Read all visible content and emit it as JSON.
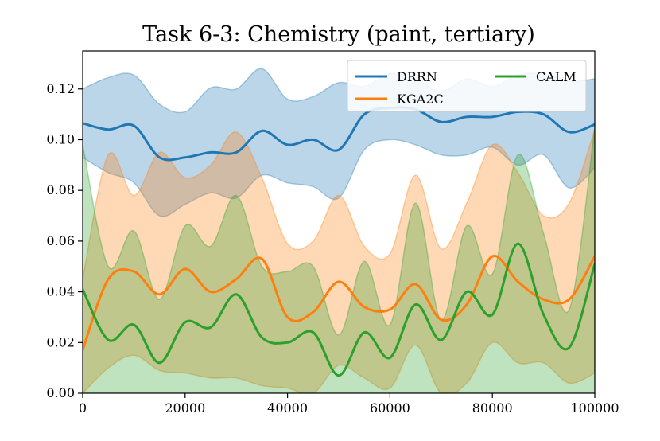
{
  "chart_data": {
    "type": "line",
    "title": "Task 6-3: Chemistry (paint, tertiary)",
    "xlabel": "",
    "ylabel": "",
    "xlim": [
      0,
      100000
    ],
    "ylim": [
      0,
      0.135
    ],
    "x_ticks": [
      0,
      20000,
      40000,
      60000,
      80000,
      100000
    ],
    "x_tick_labels": [
      "0",
      "20000",
      "40000",
      "60000",
      "80000",
      "100000"
    ],
    "y_ticks": [
      0,
      0.02,
      0.04,
      0.06,
      0.08,
      0.1,
      0.12
    ],
    "y_tick_labels": [
      "0.00",
      "0.02",
      "0.04",
      "0.06",
      "0.08",
      "0.10",
      "0.12"
    ],
    "grid": false,
    "legend_position": "top-right",
    "x": [
      0,
      5000,
      10000,
      15000,
      20000,
      25000,
      30000,
      35000,
      40000,
      45000,
      50000,
      55000,
      60000,
      65000,
      70000,
      75000,
      80000,
      85000,
      90000,
      95000,
      100000
    ],
    "series": [
      {
        "name": "DRRN",
        "color": "#1f77b4",
        "values": [
          0.1065,
          0.104,
          0.1055,
          0.093,
          0.093,
          0.095,
          0.095,
          0.1035,
          0.098,
          0.1,
          0.096,
          0.11,
          0.1125,
          0.112,
          0.107,
          0.109,
          0.109,
          0.111,
          0.11,
          0.103,
          0.106
        ],
        "upper": [
          0.12,
          0.1245,
          0.1255,
          0.114,
          0.111,
          0.1205,
          0.12,
          0.128,
          0.116,
          0.117,
          0.1225,
          0.121,
          0.126,
          0.124,
          0.119,
          0.124,
          0.121,
          0.1255,
          0.126,
          0.123,
          0.124
        ],
        "lower": [
          0.093,
          0.087,
          0.083,
          0.07,
          0.0745,
          0.079,
          0.077,
          0.086,
          0.083,
          0.0815,
          0.077,
          0.096,
          0.1,
          0.098,
          0.094,
          0.094,
          0.097,
          0.09,
          0.094,
          0.081,
          0.089
        ]
      },
      {
        "name": "KGA2C",
        "color": "#ff7f0e",
        "values": [
          0.017,
          0.045,
          0.048,
          0.039,
          0.049,
          0.04,
          0.045,
          0.053,
          0.03,
          0.032,
          0.044,
          0.034,
          0.033,
          0.043,
          0.029,
          0.035,
          0.054,
          0.044,
          0.037,
          0.037,
          0.054
        ],
        "upper": [
          0.045,
          0.094,
          0.078,
          0.095,
          0.085,
          0.09,
          0.103,
          0.085,
          0.059,
          0.06,
          0.078,
          0.058,
          0.055,
          0.086,
          0.057,
          0.075,
          0.098,
          0.087,
          0.07,
          0.075,
          0.104
        ],
        "lower": [
          0.0,
          0.01,
          0.015,
          0.009,
          0.008,
          0.006,
          0.006,
          0.003,
          0.002,
          0.0,
          0.011,
          0.006,
          0.002,
          0.019,
          0.0,
          0.004,
          0.02,
          0.012,
          0.012,
          0.004,
          0.008
        ]
      },
      {
        "name": "CALM",
        "color": "#2ca02c",
        "values": [
          0.041,
          0.021,
          0.027,
          0.012,
          0.028,
          0.026,
          0.039,
          0.022,
          0.02,
          0.024,
          0.007,
          0.024,
          0.014,
          0.035,
          0.021,
          0.04,
          0.031,
          0.059,
          0.031,
          0.018,
          0.051
        ],
        "upper": [
          0.098,
          0.05,
          0.064,
          0.037,
          0.066,
          0.058,
          0.078,
          0.05,
          0.048,
          0.05,
          0.023,
          0.052,
          0.027,
          0.075,
          0.029,
          0.066,
          0.047,
          0.094,
          0.063,
          0.033,
          0.105
        ],
        "lower": [
          0.0,
          0.0,
          0.0,
          0.0,
          0.0,
          0.0,
          0.0,
          0.0,
          0.0,
          0.0,
          0.0,
          0.0,
          0.0,
          0.0,
          0.0,
          0.0,
          0.0,
          0.0,
          0.0,
          0.0,
          0.0
        ]
      }
    ]
  }
}
